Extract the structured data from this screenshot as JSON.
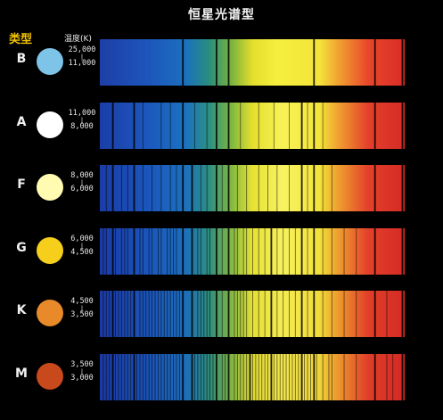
{
  "title": "恒星光谱型",
  "headers": {
    "type": "类型",
    "temperature": "温度(K)"
  },
  "temp_separator": "|",
  "colors": {
    "title_text": "#f2f2f2",
    "type_header": "#f2c300",
    "background": "#000000"
  },
  "rows": [
    {
      "type": "B",
      "temp_high": "25,000",
      "temp_low": "11,000",
      "star_color": "#7ec3e8",
      "spectrum": {
        "stops": [
          [
            0.0,
            "#1d3fa6"
          ],
          [
            0.16,
            "#1d56bb"
          ],
          [
            0.28,
            "#1b6fbf"
          ],
          [
            0.36,
            "#2a8f7c"
          ],
          [
            0.43,
            "#78b23e"
          ],
          [
            0.5,
            "#e3dd2c"
          ],
          [
            0.58,
            "#f6ef3e"
          ],
          [
            0.72,
            "#f4e43a"
          ],
          [
            0.78,
            "#f1a431"
          ],
          [
            0.88,
            "#e8472a"
          ],
          [
            1.0,
            "#d82c26"
          ]
        ],
        "lines": [
          0.27,
          0.38,
          0.42,
          0.7,
          0.9,
          0.99
        ],
        "thin_lines": []
      }
    },
    {
      "type": "A",
      "temp_high": "11,000",
      "temp_low": "8,000",
      "star_color": "#ffffff",
      "spectrum": {
        "stops": [
          [
            0.0,
            "#1b3ea8"
          ],
          [
            0.16,
            "#1c58bd"
          ],
          [
            0.28,
            "#1b72c0"
          ],
          [
            0.36,
            "#2c9082"
          ],
          [
            0.43,
            "#7cb640"
          ],
          [
            0.5,
            "#e4df2e"
          ],
          [
            0.6,
            "#f8f257"
          ],
          [
            0.72,
            "#f4e63a"
          ],
          [
            0.78,
            "#f0a230"
          ],
          [
            0.88,
            "#e4402a"
          ],
          [
            1.0,
            "#d62b25"
          ]
        ],
        "lines": [
          0.04,
          0.11,
          0.27,
          0.38,
          0.42,
          0.66,
          0.7,
          0.9,
          0.99
        ],
        "thin_lines": [
          0.14,
          0.2,
          0.23,
          0.31,
          0.35,
          0.46,
          0.52,
          0.57,
          0.62,
          0.68,
          0.73
        ]
      }
    },
    {
      "type": "F",
      "temp_high": "8,000",
      "temp_low": "6,000",
      "star_color": "#fffbb0",
      "spectrum": {
        "stops": [
          [
            0.0,
            "#1a3ca8"
          ],
          [
            0.16,
            "#1b56bc"
          ],
          [
            0.28,
            "#1c70be"
          ],
          [
            0.36,
            "#2e9080"
          ],
          [
            0.43,
            "#80b843"
          ],
          [
            0.5,
            "#e6e233"
          ],
          [
            0.6,
            "#f8f363"
          ],
          [
            0.72,
            "#f3e43b"
          ],
          [
            0.78,
            "#efa02f"
          ],
          [
            0.88,
            "#e3402a"
          ],
          [
            1.0,
            "#d52a25"
          ]
        ],
        "lines": [
          0.04,
          0.11,
          0.27,
          0.3,
          0.38,
          0.42,
          0.66,
          0.7,
          0.9,
          0.99
        ],
        "thin_lines": [
          0.02,
          0.07,
          0.09,
          0.14,
          0.17,
          0.2,
          0.23,
          0.25,
          0.33,
          0.35,
          0.4,
          0.45,
          0.48,
          0.52,
          0.55,
          0.58,
          0.62,
          0.68,
          0.73,
          0.76
        ]
      }
    },
    {
      "type": "G",
      "temp_high": "6,000",
      "temp_low": "4,500",
      "star_color": "#f5cf1c",
      "spectrum": {
        "stops": [
          [
            0.0,
            "#1a3ba6"
          ],
          [
            0.16,
            "#1b55ba"
          ],
          [
            0.28,
            "#1c6fbd"
          ],
          [
            0.36,
            "#2f8f7e"
          ],
          [
            0.43,
            "#82b845"
          ],
          [
            0.5,
            "#e6e236"
          ],
          [
            0.6,
            "#f7f15c"
          ],
          [
            0.72,
            "#f2e23a"
          ],
          [
            0.78,
            "#efa02f"
          ],
          [
            0.88,
            "#e3402a"
          ],
          [
            1.0,
            "#d52a25"
          ]
        ],
        "lines": [
          0.04,
          0.11,
          0.27,
          0.3,
          0.38,
          0.42,
          0.56,
          0.66,
          0.7,
          0.9,
          0.99
        ],
        "thin_lines": [
          0.01,
          0.02,
          0.05,
          0.07,
          0.08,
          0.09,
          0.13,
          0.14,
          0.16,
          0.17,
          0.19,
          0.2,
          0.22,
          0.23,
          0.24,
          0.25,
          0.32,
          0.33,
          0.35,
          0.36,
          0.4,
          0.44,
          0.45,
          0.47,
          0.48,
          0.5,
          0.52,
          0.54,
          0.58,
          0.6,
          0.62,
          0.64,
          0.68,
          0.73,
          0.76,
          0.8,
          0.84
        ]
      }
    },
    {
      "type": "K",
      "temp_high": "4,500",
      "temp_low": "3,500",
      "star_color": "#e8892a",
      "spectrum": {
        "stops": [
          [
            0.0,
            "#1b3aa4"
          ],
          [
            0.16,
            "#1b54b8"
          ],
          [
            0.28,
            "#1c6dbb"
          ],
          [
            0.36,
            "#2f8d7c"
          ],
          [
            0.43,
            "#80b644"
          ],
          [
            0.5,
            "#e4df35"
          ],
          [
            0.6,
            "#f5ec52"
          ],
          [
            0.72,
            "#f1db39"
          ],
          [
            0.78,
            "#ee9c2e"
          ],
          [
            0.88,
            "#e13f29"
          ],
          [
            1.0,
            "#d42a24"
          ]
        ],
        "lines": [
          0.04,
          0.11,
          0.27,
          0.3,
          0.38,
          0.42,
          0.56,
          0.66,
          0.7,
          0.9,
          0.99
        ],
        "thin_lines": [
          0.01,
          0.02,
          0.03,
          0.05,
          0.06,
          0.07,
          0.08,
          0.09,
          0.1,
          0.13,
          0.14,
          0.15,
          0.16,
          0.17,
          0.18,
          0.19,
          0.2,
          0.21,
          0.22,
          0.23,
          0.24,
          0.25,
          0.26,
          0.32,
          0.33,
          0.34,
          0.35,
          0.36,
          0.4,
          0.44,
          0.45,
          0.46,
          0.47,
          0.48,
          0.5,
          0.52,
          0.54,
          0.58,
          0.6,
          0.62,
          0.64,
          0.68,
          0.73,
          0.76,
          0.8,
          0.84,
          0.94
        ]
      }
    },
    {
      "type": "M",
      "temp_high": "3,500",
      "temp_low": "3,000",
      "star_color": "#c84a1c",
      "spectrum": {
        "stops": [
          [
            0.0,
            "#1b3aa3"
          ],
          [
            0.16,
            "#1b53b7"
          ],
          [
            0.28,
            "#1c6cba"
          ],
          [
            0.36,
            "#2e8c7a"
          ],
          [
            0.43,
            "#7eb343"
          ],
          [
            0.5,
            "#e0da34"
          ],
          [
            0.6,
            "#f2e64d"
          ],
          [
            0.72,
            "#efd538"
          ],
          [
            0.78,
            "#ec982d"
          ],
          [
            0.88,
            "#df3e29"
          ],
          [
            1.0,
            "#d22924"
          ]
        ],
        "lines": [
          0.04,
          0.11,
          0.27,
          0.3,
          0.38,
          0.42,
          0.49,
          0.56,
          0.66,
          0.7,
          0.9,
          0.99
        ],
        "thin_lines": [
          0.01,
          0.02,
          0.03,
          0.05,
          0.06,
          0.07,
          0.08,
          0.09,
          0.1,
          0.12,
          0.13,
          0.14,
          0.15,
          0.16,
          0.17,
          0.18,
          0.19,
          0.2,
          0.21,
          0.22,
          0.23,
          0.24,
          0.25,
          0.26,
          0.31,
          0.32,
          0.33,
          0.34,
          0.35,
          0.36,
          0.37,
          0.4,
          0.41,
          0.44,
          0.45,
          0.46,
          0.47,
          0.48,
          0.5,
          0.51,
          0.52,
          0.53,
          0.54,
          0.55,
          0.57,
          0.58,
          0.59,
          0.6,
          0.61,
          0.62,
          0.63,
          0.64,
          0.65,
          0.67,
          0.68,
          0.69,
          0.71,
          0.73,
          0.75,
          0.76,
          0.8,
          0.84,
          0.94,
          0.96
        ]
      }
    }
  ]
}
